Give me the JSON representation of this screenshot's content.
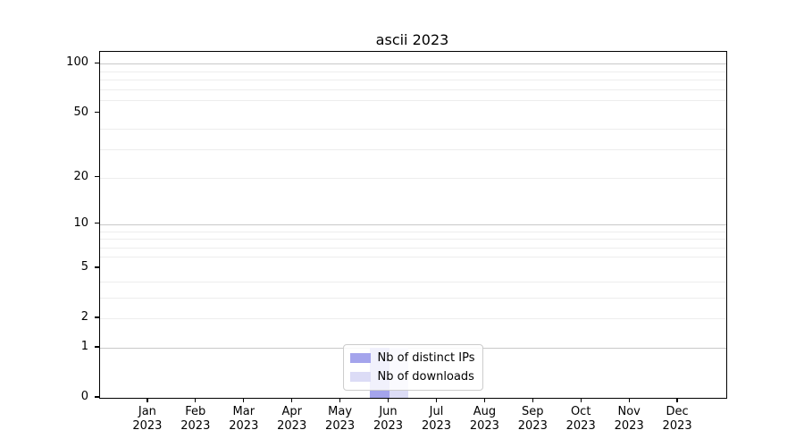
{
  "chart_data": {
    "type": "bar",
    "title": "ascii 2023",
    "categories": [
      "Jan",
      "Feb",
      "Mar",
      "Apr",
      "May",
      "Jun",
      "Jul",
      "Aug",
      "Sep",
      "Oct",
      "Nov",
      "Dec"
    ],
    "x_sublabel_year": "2023",
    "series": [
      {
        "name": "Nb of distinct IPs",
        "color": "#a4a4ec",
        "values": [
          0,
          0,
          0,
          0,
          0,
          1,
          0,
          0,
          0,
          0,
          0,
          0
        ]
      },
      {
        "name": "Nb of downloads",
        "color": "#dcdcf6",
        "values": [
          0,
          0,
          0,
          0,
          0,
          1,
          0,
          0,
          0,
          0,
          0,
          0
        ]
      }
    ],
    "scale": "log1p",
    "ylim": [
      0,
      118
    ],
    "y_ticks_labeled": [
      0,
      1,
      2,
      5,
      10,
      20,
      50,
      100
    ],
    "y_gridlines_major": [
      1,
      10,
      100
    ],
    "y_gridlines_minor": [
      2,
      3,
      4,
      6,
      7,
      8,
      9,
      20,
      30,
      40,
      60,
      70,
      80,
      90
    ],
    "grid": "on",
    "legend_position": "lower center",
    "colors": {
      "spine": "#000000",
      "grid_major": "#c9c9c9",
      "grid_minor": "#ededed",
      "legend_border": "#cccccc"
    }
  }
}
